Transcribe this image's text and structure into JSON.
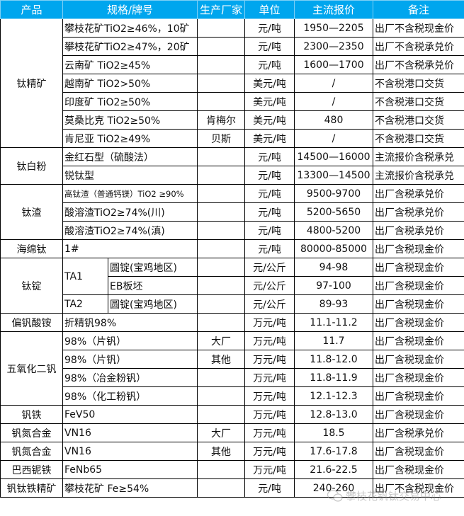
{
  "header": {
    "product": "产品",
    "spec": "规格/牌号",
    "maker": "生产厂家",
    "unit": "单位",
    "price": "主流报价",
    "note": "备注"
  },
  "groups": [
    {
      "product": "钛精矿",
      "rows": [
        {
          "spec": "攀枝花矿TiO2≥46%，10矿",
          "maker": "",
          "unit": "元/吨",
          "price": "1950—2205",
          "note": "出厂不含税现金价"
        },
        {
          "spec": "攀枝花矿TiO2≥47%，20矿",
          "maker": "",
          "unit": "元/吨",
          "price": "2300—2350",
          "note": "出厂不含税承兑价"
        },
        {
          "spec": "云南矿 TiO2≥45%",
          "maker": "",
          "unit": "元/吨",
          "price": "1600—1700",
          "note": "出厂不含税承兑价"
        },
        {
          "spec": "越南矿 TiO2>50%",
          "maker": "",
          "unit": "美元/吨",
          "price": "/",
          "note": "不含税港口交货"
        },
        {
          "spec": "印度矿 TiO2≥50%",
          "maker": "",
          "unit": "美元/吨",
          "price": "/",
          "note": "不含税港口交货"
        },
        {
          "spec": "莫桑比克 TiO2≥50%",
          "maker": "肯梅尔",
          "unit": "美元/吨",
          "price": "480",
          "note": "不含税港口交货"
        },
        {
          "spec": "肯尼亚 TiO2≥49%",
          "maker": "贝斯",
          "unit": "美元/吨",
          "price": "/",
          "note": "不含税港口交货"
        }
      ]
    },
    {
      "product": "钛白粉",
      "rows": [
        {
          "spec": "金红石型（硫酸法）",
          "maker": "",
          "unit": "元/吨",
          "price": "14500—16000",
          "note": "主流报价含税承兑"
        },
        {
          "spec": "锐钛型",
          "maker": "",
          "unit": "元/吨",
          "price": "13300—14500",
          "note": "主流报价含税承兑"
        }
      ]
    },
    {
      "product": "钛渣",
      "rows": [
        {
          "spec": "高钛渣（普通钙镁）TiO2 ≥90%",
          "small": true,
          "maker": "",
          "unit": "元/吨",
          "price": "9500-9700",
          "note": "出厂含税承兑价"
        },
        {
          "spec": "酸溶渣TiO2≥74%(川)",
          "maker": "",
          "unit": "元/吨",
          "price": "5200-5650",
          "note": "出厂含税承兑价"
        },
        {
          "spec": "酸溶渣TiO2≥74%(滇)",
          "maker": "",
          "unit": "元/吨",
          "price": "4800-5200",
          "note": "出厂含税承兑价"
        }
      ]
    },
    {
      "product": "海绵钛",
      "rows": [
        {
          "spec": "1#",
          "maker": "",
          "unit": "元/吨",
          "price": "80000-85000",
          "note": "出厂含税现金价"
        }
      ]
    },
    {
      "product": "钛锭",
      "rows": [
        {
          "grade": "TA1",
          "spec": "圆锭(宝鸡地区)",
          "unit": "元/公斤",
          "price": "94-98",
          "note": "出厂含税现金价"
        },
        {
          "grade": "TA1",
          "spec": "EB板坯",
          "unit": "元/公斤",
          "price": "97-100",
          "note": "出厂含税现金价"
        },
        {
          "grade": "TA2",
          "spec": "圆锭(宝鸡地区)",
          "unit": "元/公斤",
          "price": "89-93",
          "note": "出厂含税现金价"
        }
      ]
    },
    {
      "product": "偏钒酸铵",
      "rows": [
        {
          "spec": "折精钒98%",
          "maker": "",
          "unit": "万元/吨",
          "price": "11.1-11.2",
          "note": "出厂含税现金价"
        }
      ]
    },
    {
      "product": "五氧化二钒",
      "rows": [
        {
          "spec": "98%（片钒）",
          "maker": "大厂",
          "unit": "万元/吨",
          "price": "11.7",
          "note": "出厂含税现金价"
        },
        {
          "spec": "98%（片钒）",
          "maker": "其他",
          "unit": "万元/吨",
          "price": "11.8-12.0",
          "note": "出厂含税现金价"
        },
        {
          "spec": "98%（冶金粉钒）",
          "maker": "",
          "unit": "万元/吨",
          "price": "11.8-11.9",
          "note": "出厂含税现金价"
        },
        {
          "spec": "98%（化工粉钒）",
          "maker": "",
          "unit": "万元/吨",
          "price": "12.1-12.3",
          "note": "出厂含税现金价"
        }
      ]
    },
    {
      "product": "钒铁",
      "rows": [
        {
          "spec": "FeV50",
          "maker": "",
          "unit": "万元/吨",
          "price": "12.8-13.0",
          "note": "出厂含税现金价"
        }
      ]
    },
    {
      "product": "钒氮合金",
      "rows": [
        {
          "spec": "VN16",
          "maker": "大厂",
          "unit": "万元/吨",
          "price": "18.5",
          "note": "出厂含税承兑价"
        }
      ]
    },
    {
      "product": "钒氮合金",
      "rows": [
        {
          "spec": "VN16",
          "maker": "其他",
          "unit": "万元/吨",
          "price": "17.6-17.8",
          "note": "出厂含税现金价"
        }
      ]
    },
    {
      "product": "巴西铌铁",
      "rows": [
        {
          "spec": "FeNb65",
          "maker": "",
          "unit": "万元/吨",
          "price": "21.6-22.5",
          "note": "出厂含税现金价"
        }
      ]
    },
    {
      "product": "钒钛铁精矿",
      "rows": [
        {
          "spec": "攀枝花矿 Fe≥54%",
          "maker": "",
          "unit": "元/吨",
          "price": "240-260",
          "note": "出厂不含税现金价"
        }
      ]
    }
  ],
  "watermark": {
    "text": "攀枝花钒钛交易中心",
    "icon": "wechat-icon"
  },
  "colors": {
    "header_bg": "#00a6ee",
    "header_text": "#ffffff"
  }
}
